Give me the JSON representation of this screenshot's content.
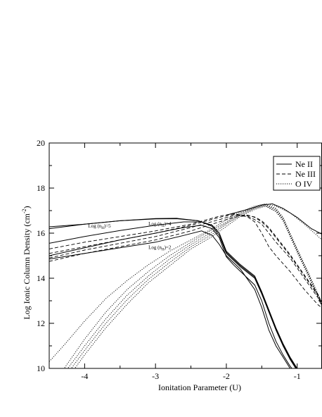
{
  "chart_data": {
    "type": "line",
    "title": "",
    "xlabel": "Ionitation Parameter (U)",
    "ylabel": "Log Ionic Column Density (cm",
    "ylabel_sup": "-2",
    "ylabel_close": ")",
    "xlim": [
      -4.5,
      -0.65
    ],
    "ylim": [
      10,
      20
    ],
    "xticks": [
      -4,
      -3,
      -2,
      -1
    ],
    "xtick_labels": [
      "-4",
      "-3",
      "-2",
      "-1"
    ],
    "yticks": [
      10,
      12,
      14,
      16,
      18,
      20
    ],
    "ytick_labels": [
      "10",
      "12",
      "14",
      "16",
      "18",
      "20"
    ],
    "grid": false,
    "legend_position": "top-right",
    "legend": [
      {
        "name": "Ne II",
        "style": "solid"
      },
      {
        "name": "Ne III",
        "style": "dashed"
      },
      {
        "name": "O IV",
        "style": "dotted"
      }
    ],
    "annotations": [
      {
        "text": "Log (n",
        "sub": "H",
        "tail": ")=5",
        "x": -3.95,
        "y": 16.25
      },
      {
        "text": "Log (n",
        "sub": "H",
        "tail": ")=4",
        "x": -3.1,
        "y": 16.35
      },
      {
        "text": "Log (n",
        "sub": "H",
        "tail": ")=2",
        "x": -3.1,
        "y": 15.3
      }
    ],
    "series": [
      {
        "style": "solid",
        "points": [
          [
            -4.5,
            16.28
          ],
          [
            -4.0,
            16.4
          ],
          [
            -3.5,
            16.55
          ],
          [
            -3.0,
            16.65
          ],
          [
            -2.7,
            16.66
          ],
          [
            -2.4,
            16.55
          ],
          [
            -2.2,
            16.35
          ],
          [
            -2.1,
            16.0
          ],
          [
            -2.0,
            15.2
          ],
          [
            -1.9,
            14.9
          ],
          [
            -1.8,
            14.6
          ],
          [
            -1.6,
            14.1
          ],
          [
            -1.5,
            13.4
          ],
          [
            -1.4,
            12.6
          ],
          [
            -1.3,
            11.8
          ],
          [
            -1.2,
            11.1
          ],
          [
            -1.1,
            10.5
          ],
          [
            -1.0,
            10.0
          ]
        ]
      },
      {
        "style": "solid",
        "points": [
          [
            -4.5,
            16.2
          ],
          [
            -4.0,
            16.4
          ],
          [
            -3.5,
            16.55
          ],
          [
            -3.0,
            16.63
          ],
          [
            -2.7,
            16.64
          ],
          [
            -2.4,
            16.55
          ],
          [
            -2.2,
            16.35
          ],
          [
            -2.1,
            16.0
          ],
          [
            -2.0,
            15.15
          ],
          [
            -1.9,
            14.85
          ],
          [
            -1.8,
            14.55
          ],
          [
            -1.6,
            14.05
          ],
          [
            -1.5,
            13.35
          ],
          [
            -1.4,
            12.55
          ],
          [
            -1.3,
            11.75
          ],
          [
            -1.2,
            11.05
          ],
          [
            -1.1,
            10.45
          ],
          [
            -1.0,
            9.95
          ]
        ]
      },
      {
        "style": "solid",
        "points": [
          [
            -4.5,
            15.55
          ],
          [
            -4.0,
            15.85
          ],
          [
            -3.5,
            16.12
          ],
          [
            -3.0,
            16.35
          ],
          [
            -2.6,
            16.5
          ],
          [
            -2.35,
            16.5
          ],
          [
            -2.2,
            16.3
          ],
          [
            -2.1,
            15.9
          ],
          [
            -2.0,
            15.1
          ],
          [
            -1.9,
            14.8
          ],
          [
            -1.8,
            14.5
          ],
          [
            -1.6,
            14.0
          ],
          [
            -1.5,
            13.3
          ],
          [
            -1.4,
            12.5
          ],
          [
            -1.3,
            11.7
          ],
          [
            -1.2,
            11.0
          ],
          [
            -1.1,
            10.4
          ],
          [
            -1.0,
            9.9
          ]
        ]
      },
      {
        "style": "solid",
        "points": [
          [
            -4.5,
            15.0
          ],
          [
            -4.0,
            15.35
          ],
          [
            -3.5,
            15.7
          ],
          [
            -3.0,
            16.0
          ],
          [
            -2.6,
            16.25
          ],
          [
            -2.35,
            16.35
          ],
          [
            -2.2,
            16.2
          ],
          [
            -2.1,
            15.8
          ],
          [
            -2.0,
            14.95
          ],
          [
            -1.9,
            14.6
          ],
          [
            -1.8,
            14.3
          ],
          [
            -1.6,
            13.7
          ],
          [
            -1.5,
            13.0
          ],
          [
            -1.4,
            12.0
          ],
          [
            -1.3,
            11.2
          ],
          [
            -1.2,
            10.6
          ],
          [
            -1.1,
            10.1
          ],
          [
            -1.05,
            9.9
          ]
        ]
      },
      {
        "style": "solid",
        "points": [
          [
            -4.5,
            14.85
          ],
          [
            -4.0,
            15.1
          ],
          [
            -3.5,
            15.35
          ],
          [
            -3.0,
            15.6
          ],
          [
            -2.6,
            15.9
          ],
          [
            -2.35,
            16.1
          ],
          [
            -2.2,
            15.9
          ],
          [
            -2.1,
            15.5
          ],
          [
            -2.0,
            15.0
          ],
          [
            -1.9,
            14.7
          ],
          [
            -1.8,
            14.4
          ],
          [
            -1.6,
            13.5
          ],
          [
            -1.5,
            12.7
          ],
          [
            -1.4,
            11.7
          ],
          [
            -1.3,
            11.0
          ],
          [
            -1.2,
            10.5
          ],
          [
            -1.1,
            10.0
          ],
          [
            -1.05,
            9.9
          ]
        ]
      },
      {
        "style": "solid",
        "points": [
          [
            -2.0,
            16.8
          ],
          [
            -1.7,
            17.05
          ],
          [
            -1.5,
            17.25
          ],
          [
            -1.35,
            17.3
          ],
          [
            -1.2,
            17.1
          ],
          [
            -1.0,
            16.7
          ],
          [
            -0.8,
            16.2
          ],
          [
            -0.65,
            15.95
          ]
        ]
      },
      {
        "style": "dashed",
        "points": [
          [
            -4.5,
            15.3
          ],
          [
            -4.0,
            15.6
          ],
          [
            -3.5,
            15.85
          ],
          [
            -3.0,
            16.1
          ],
          [
            -2.5,
            16.4
          ],
          [
            -2.1,
            16.75
          ],
          [
            -1.9,
            16.87
          ],
          [
            -1.7,
            16.72
          ],
          [
            -1.6,
            16.5
          ],
          [
            -1.5,
            16.0
          ],
          [
            -1.4,
            15.4
          ],
          [
            -1.3,
            15.0
          ],
          [
            -1.1,
            14.3
          ],
          [
            -0.9,
            13.5
          ],
          [
            -0.7,
            12.8
          ],
          [
            -0.65,
            12.7
          ]
        ]
      },
      {
        "style": "dashed",
        "points": [
          [
            -4.5,
            15.1
          ],
          [
            -4.0,
            15.4
          ],
          [
            -3.5,
            15.7
          ],
          [
            -3.0,
            16.0
          ],
          [
            -2.5,
            16.35
          ],
          [
            -2.1,
            16.7
          ],
          [
            -1.9,
            16.83
          ],
          [
            -1.7,
            16.75
          ],
          [
            -1.6,
            16.6
          ],
          [
            -1.5,
            16.4
          ],
          [
            -1.4,
            16.0
          ],
          [
            -1.3,
            15.6
          ],
          [
            -1.1,
            14.9
          ],
          [
            -0.9,
            14.0
          ],
          [
            -0.7,
            13.1
          ],
          [
            -0.65,
            12.75
          ]
        ]
      },
      {
        "style": "dashed",
        "points": [
          [
            -4.5,
            14.9
          ],
          [
            -4.0,
            15.25
          ],
          [
            -3.5,
            15.55
          ],
          [
            -3.0,
            15.85
          ],
          [
            -2.5,
            16.25
          ],
          [
            -2.1,
            16.6
          ],
          [
            -1.9,
            16.78
          ],
          [
            -1.7,
            16.8
          ],
          [
            -1.6,
            16.7
          ],
          [
            -1.5,
            16.5
          ],
          [
            -1.4,
            16.2
          ],
          [
            -1.3,
            15.8
          ],
          [
            -1.1,
            15.0
          ],
          [
            -0.9,
            14.1
          ],
          [
            -0.7,
            13.2
          ],
          [
            -0.65,
            12.8
          ]
        ]
      },
      {
        "style": "dashed",
        "points": [
          [
            -4.5,
            14.75
          ],
          [
            -4.0,
            15.1
          ],
          [
            -3.5,
            15.4
          ],
          [
            -3.0,
            15.7
          ],
          [
            -2.5,
            16.1
          ],
          [
            -2.1,
            16.5
          ],
          [
            -1.9,
            16.7
          ],
          [
            -1.7,
            16.78
          ],
          [
            -1.6,
            16.72
          ],
          [
            -1.5,
            16.55
          ],
          [
            -1.4,
            16.25
          ],
          [
            -1.3,
            15.85
          ],
          [
            -1.1,
            15.05
          ],
          [
            -0.9,
            14.15
          ],
          [
            -0.7,
            13.25
          ],
          [
            -0.65,
            12.85
          ]
        ]
      },
      {
        "style": "dotted",
        "points": [
          [
            -4.5,
            10.3
          ],
          [
            -4.3,
            11.0
          ],
          [
            -4.0,
            12.1
          ],
          [
            -3.7,
            13.1
          ],
          [
            -3.4,
            13.9
          ],
          [
            -3.1,
            14.6
          ],
          [
            -2.8,
            15.2
          ],
          [
            -2.5,
            15.7
          ],
          [
            -2.2,
            16.2
          ],
          [
            -2.0,
            16.6
          ],
          [
            -1.8,
            16.95
          ],
          [
            -1.6,
            17.2
          ],
          [
            -1.45,
            17.3
          ],
          [
            -1.3,
            17.2
          ],
          [
            -1.1,
            16.9
          ],
          [
            -0.9,
            16.4
          ],
          [
            -0.65,
            15.7
          ]
        ]
      },
      {
        "style": "dotted",
        "points": [
          [
            -4.3,
            9.95
          ],
          [
            -4.0,
            11.3
          ],
          [
            -3.7,
            12.5
          ],
          [
            -3.4,
            13.5
          ],
          [
            -3.1,
            14.3
          ],
          [
            -2.8,
            15.0
          ],
          [
            -2.5,
            15.6
          ],
          [
            -2.2,
            16.15
          ],
          [
            -2.0,
            16.5
          ],
          [
            -1.8,
            16.9
          ],
          [
            -1.6,
            17.15
          ],
          [
            -1.45,
            17.28
          ],
          [
            -1.3,
            17.1
          ],
          [
            -1.2,
            16.7
          ],
          [
            -1.1,
            16.0
          ],
          [
            -1.0,
            15.3
          ],
          [
            -0.85,
            14.3
          ],
          [
            -0.65,
            12.9
          ]
        ]
      },
      {
        "style": "dotted",
        "points": [
          [
            -4.25,
            9.95
          ],
          [
            -4.0,
            11.0
          ],
          [
            -3.7,
            12.2
          ],
          [
            -3.4,
            13.25
          ],
          [
            -3.1,
            14.1
          ],
          [
            -2.8,
            14.85
          ],
          [
            -2.5,
            15.5
          ],
          [
            -2.2,
            16.05
          ],
          [
            -2.0,
            16.45
          ],
          [
            -1.8,
            16.85
          ],
          [
            -1.6,
            17.12
          ],
          [
            -1.45,
            17.25
          ],
          [
            -1.3,
            17.05
          ],
          [
            -1.2,
            16.65
          ],
          [
            -1.1,
            15.95
          ],
          [
            -1.0,
            15.25
          ],
          [
            -0.85,
            14.25
          ],
          [
            -0.65,
            12.85
          ]
        ]
      },
      {
        "style": "dotted",
        "points": [
          [
            -4.2,
            9.95
          ],
          [
            -4.0,
            10.8
          ],
          [
            -3.7,
            12.0
          ],
          [
            -3.4,
            13.05
          ],
          [
            -3.1,
            13.95
          ],
          [
            -2.8,
            14.7
          ],
          [
            -2.5,
            15.4
          ],
          [
            -2.2,
            15.95
          ],
          [
            -2.0,
            16.4
          ],
          [
            -1.8,
            16.8
          ],
          [
            -1.6,
            17.1
          ],
          [
            -1.45,
            17.22
          ],
          [
            -1.3,
            17.0
          ],
          [
            -1.2,
            16.6
          ],
          [
            -1.1,
            15.9
          ],
          [
            -1.0,
            15.2
          ],
          [
            -0.85,
            14.2
          ],
          [
            -0.65,
            12.8
          ]
        ]
      },
      {
        "style": "dotted",
        "points": [
          [
            -4.15,
            9.95
          ],
          [
            -4.0,
            10.6
          ],
          [
            -3.7,
            11.8
          ],
          [
            -3.4,
            12.85
          ],
          [
            -3.1,
            13.8
          ],
          [
            -2.8,
            14.55
          ],
          [
            -2.5,
            15.3
          ],
          [
            -2.2,
            15.85
          ],
          [
            -2.0,
            16.3
          ],
          [
            -1.8,
            16.75
          ],
          [
            -1.6,
            17.05
          ],
          [
            -1.45,
            17.2
          ],
          [
            -1.3,
            16.95
          ],
          [
            -1.2,
            16.55
          ],
          [
            -1.1,
            15.85
          ],
          [
            -1.0,
            15.15
          ],
          [
            -0.85,
            14.15
          ],
          [
            -0.65,
            12.75
          ]
        ]
      }
    ]
  }
}
